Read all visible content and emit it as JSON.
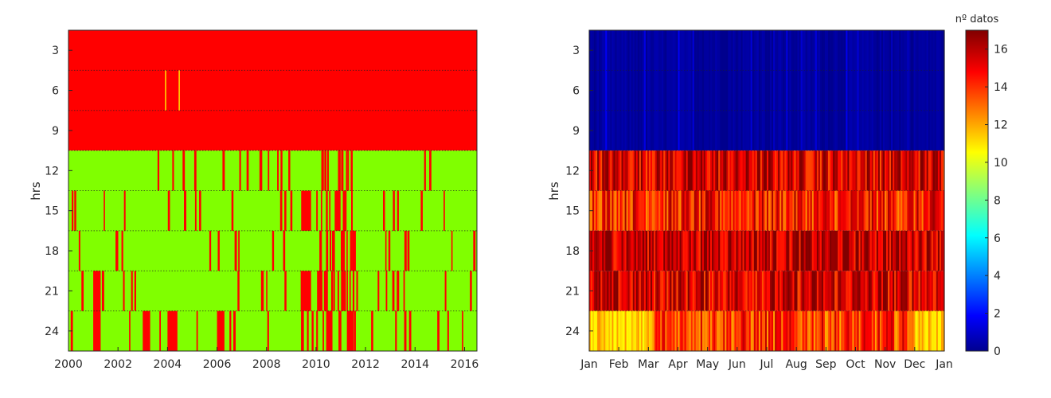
{
  "chart_data": [
    {
      "type": "heatmap",
      "title": "",
      "xlabel": "",
      "ylabel": "hrs",
      "x_ticks": [
        "2000",
        "2002",
        "2004",
        "2006",
        "2008",
        "2010",
        "2012",
        "2014",
        "2016"
      ],
      "x_tick_values": [
        2000,
        2002,
        2004,
        2006,
        2008,
        2010,
        2012,
        2014,
        2016
      ],
      "xlim": [
        2000,
        2016.5
      ],
      "y_ticks": [
        "3",
        "6",
        "9",
        "12",
        "15",
        "18",
        "21",
        "24"
      ],
      "y_tick_values": [
        3,
        6,
        9,
        12,
        15,
        18,
        21,
        24
      ],
      "ylim": [
        1.5,
        25.5
      ],
      "y_reversed": true,
      "description_of_cells": "binary availability: red = missing, green = available",
      "colors": {
        "missing": "#ff0000",
        "available": "#80ff00"
      },
      "bands": [
        {
          "hours": [
            1.5,
            10.5
          ],
          "state": "missing"
        },
        {
          "hours": [
            10.5,
            25.5
          ],
          "state": "mostly available"
        }
      ],
      "missing_blocks": [
        {
          "years": [
            2001.0,
            2001.3
          ],
          "hours": [
            19.5,
            25.5
          ]
        },
        {
          "years": [
            2003.0,
            2003.3
          ],
          "hours": [
            22.5,
            25.5
          ]
        },
        {
          "years": [
            2004.0,
            2004.4
          ],
          "hours": [
            22.5,
            25.5
          ]
        },
        {
          "years": [
            2006.0,
            2006.3
          ],
          "hours": [
            22.5,
            25.5
          ]
        },
        {
          "years": [
            2009.4,
            2009.8
          ],
          "hours": [
            19.5,
            22.5
          ]
        },
        {
          "years": [
            2009.4,
            2009.8
          ],
          "hours": [
            13.5,
            16.5
          ]
        }
      ]
    },
    {
      "type": "heatmap",
      "title": "",
      "xlabel": "",
      "ylabel": "hrs",
      "x_ticks": [
        "Jan",
        "Feb",
        "Mar",
        "Apr",
        "May",
        "Jun",
        "Jul",
        "Aug",
        "Sep",
        "Oct",
        "Nov",
        "Dec",
        "Jan"
      ],
      "y_ticks": [
        "3",
        "6",
        "9",
        "12",
        "15",
        "18",
        "21",
        "24"
      ],
      "y_tick_values": [
        3,
        6,
        9,
        12,
        15,
        18,
        21,
        24
      ],
      "ylim": [
        1.5,
        25.5
      ],
      "y_reversed": true,
      "colorbar": {
        "title": "nº datos",
        "ticks": [
          "0",
          "2",
          "4",
          "6",
          "8",
          "10",
          "12",
          "14",
          "16"
        ],
        "range": [
          0,
          17
        ],
        "colormap": "jet"
      },
      "band_levels": [
        {
          "hours": [
            1.5,
            10.5
          ],
          "value": 0
        },
        {
          "hours": [
            10.5,
            13.5
          ],
          "value": 15.5
        },
        {
          "hours": [
            13.5,
            16.5
          ],
          "value": 14.5
        },
        {
          "hours": [
            16.5,
            19.5
          ],
          "value": 16
        },
        {
          "hours": [
            19.5,
            22.5
          ],
          "value": 15.5
        },
        {
          "hours": [
            22.5,
            25.5
          ],
          "value": 14
        }
      ]
    }
  ]
}
